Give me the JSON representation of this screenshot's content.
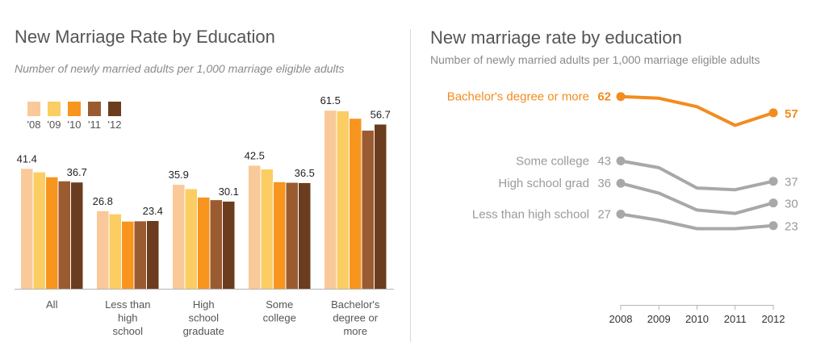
{
  "chart_data": [
    {
      "type": "bar",
      "title": "New Marriage Rate by Education",
      "subtitle": "Number of newly married adults per 1,000 marriage eligible adults",
      "categories": [
        "All",
        "Less than high school",
        "High school graduate",
        "Some college",
        "Bachelor's degree or more"
      ],
      "category_labels": [
        [
          "All"
        ],
        [
          "Less than",
          "high",
          "school"
        ],
        [
          "High",
          "school",
          "graduate"
        ],
        [
          "Some",
          "college"
        ],
        [
          "Bachelor's",
          "degree or",
          "more"
        ]
      ],
      "series": [
        {
          "name": "'08",
          "color": "#f9c99a",
          "values": [
            41.4,
            26.8,
            35.9,
            42.5,
            61.5
          ]
        },
        {
          "name": "'09",
          "color": "#fbcd62",
          "values": [
            40.2,
            25.7,
            34.4,
            41.2,
            61.3
          ]
        },
        {
          "name": "'10",
          "color": "#f7951e",
          "values": [
            38.5,
            23.2,
            31.5,
            36.8,
            58.7
          ]
        },
        {
          "name": "'11",
          "color": "#9b5b31",
          "values": [
            37.1,
            23.3,
            30.6,
            36.6,
            54.6
          ]
        },
        {
          "name": "'12",
          "color": "#6b3d1e",
          "values": [
            36.7,
            23.4,
            30.1,
            36.5,
            56.7
          ]
        }
      ],
      "data_labels": [
        {
          "category": 0,
          "series": 0,
          "text": "41.4"
        },
        {
          "category": 0,
          "series": 4,
          "text": "36.7"
        },
        {
          "category": 1,
          "series": 0,
          "text": "26.8"
        },
        {
          "category": 1,
          "series": 4,
          "text": "23.4"
        },
        {
          "category": 2,
          "series": 0,
          "text": "35.9"
        },
        {
          "category": 2,
          "series": 4,
          "text": "30.1"
        },
        {
          "category": 3,
          "series": 0,
          "text": "42.5"
        },
        {
          "category": 3,
          "series": 4,
          "text": "36.5"
        },
        {
          "category": 4,
          "series": 0,
          "text": "61.5"
        },
        {
          "category": 4,
          "series": 4,
          "text": "56.7"
        }
      ],
      "ylim": [
        0,
        66
      ],
      "xlabel": "",
      "ylabel": "",
      "legend": "top-left"
    },
    {
      "type": "line",
      "title": "New marriage rate by education",
      "subtitle": "Number of newly married adults per 1,000 marriage eligible adults",
      "x": [
        2008,
        2009,
        2010,
        2011,
        2012
      ],
      "x_tick_labels": [
        "2008",
        "2009",
        "2010",
        "2011",
        "2012"
      ],
      "ylim": [
        0,
        70
      ],
      "series": [
        {
          "name": "Bachelor's degree or more",
          "color": "#f28c1e",
          "highlight": true,
          "values": [
            61.5,
            61.0,
            58.5,
            53.0,
            56.7
          ],
          "start_label": "62",
          "end_label": "57"
        },
        {
          "name": "Some college",
          "color": "#a8a8a8",
          "highlight": false,
          "values": [
            42.5,
            40.5,
            34.5,
            34.0,
            36.5
          ],
          "start_label": "43",
          "end_label": "37"
        },
        {
          "name": "High school grad",
          "color": "#a8a8a8",
          "highlight": false,
          "values": [
            35.9,
            33.0,
            28.0,
            27.0,
            30.1
          ],
          "start_label": "36",
          "end_label": "30"
        },
        {
          "name": "Less than high school",
          "color": "#a8a8a8",
          "highlight": false,
          "values": [
            26.8,
            25.0,
            22.5,
            22.5,
            23.4
          ],
          "start_label": "27",
          "end_label": "23"
        }
      ]
    }
  ]
}
